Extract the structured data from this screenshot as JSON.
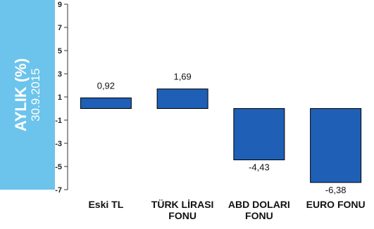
{
  "side_label": {
    "title": "AYLIK (%)",
    "date": "30.9.2015"
  },
  "colors": {
    "panel": "#6cc4ec",
    "bar": "#1f5fb5",
    "bar_stroke": "#000000",
    "axis": "#333333"
  },
  "chart_data": {
    "type": "bar",
    "title": "AYLIK (%)",
    "subtitle": "30.9.2015",
    "xlabel": "",
    "ylabel": "",
    "ylim": [
      -7,
      9
    ],
    "yticks": [
      9,
      7,
      5,
      3,
      1,
      -1,
      -3,
      -5,
      -7
    ],
    "ytick_labels": [
      "9",
      "7",
      "5",
      "3",
      "1",
      "-1",
      "-3",
      "-5",
      "-7"
    ],
    "grid": false,
    "categories": [
      [
        "Eski TL"
      ],
      [
        "TÜRK LİRASI",
        "FONU"
      ],
      [
        "ABD DOLARI",
        "FONU"
      ],
      [
        "EURO FONU"
      ]
    ],
    "values": [
      0.92,
      1.69,
      -4.43,
      -6.38
    ],
    "value_labels": [
      "0,92",
      "1,69",
      "-4,43",
      "-6,38"
    ]
  }
}
